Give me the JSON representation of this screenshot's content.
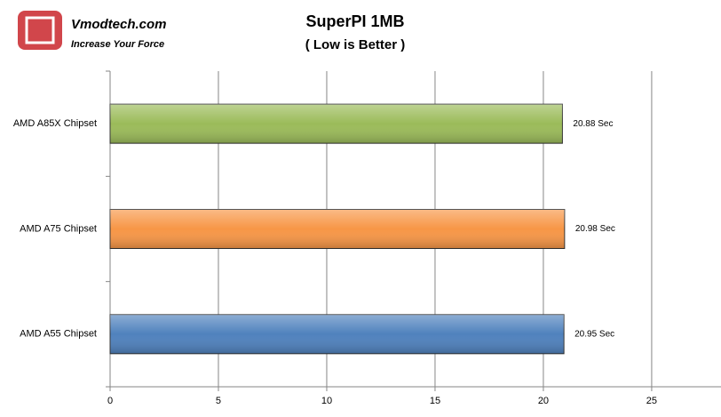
{
  "logo": {
    "name": "Vmodtech.com",
    "tagline": "Increase Your Force"
  },
  "chart_data": {
    "type": "bar",
    "orientation": "horizontal",
    "title": "SuperPI 1MB",
    "subtitle": "( Low is Better )",
    "categories": [
      "AMD A85X Chipset",
      "AMD A75 Chipset",
      "AMD A55 Chipset"
    ],
    "values": [
      20.88,
      20.98,
      20.95
    ],
    "value_labels": [
      "20.88 Sec",
      "20.98 Sec",
      "20.95 Sec"
    ],
    "colors": [
      "#9bbb59",
      "#f79646",
      "#4f81bd"
    ],
    "xlim": [
      0,
      28.2
    ],
    "xticks": [
      0,
      5,
      10,
      15,
      20,
      25
    ],
    "grid": true
  }
}
